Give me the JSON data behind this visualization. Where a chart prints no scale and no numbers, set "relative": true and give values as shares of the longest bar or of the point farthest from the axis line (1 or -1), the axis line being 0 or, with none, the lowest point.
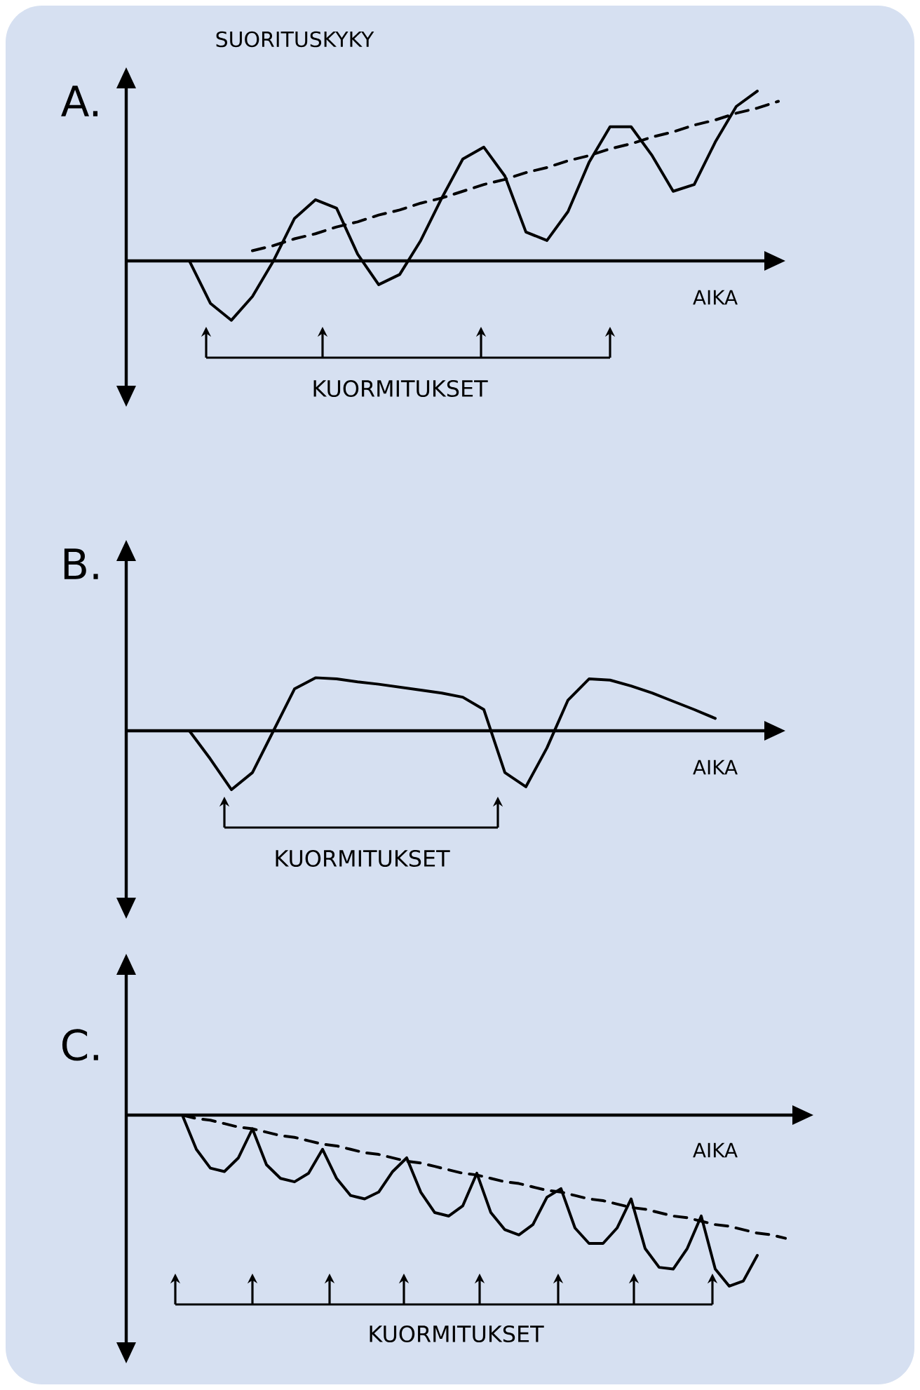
{
  "chart_data": [
    {
      "type": "line",
      "title": "A.",
      "ylabel": "SUORITUSKYKY",
      "xlabel": "AIKA",
      "relative": true,
      "annotations": [
        "KUORMITUKSET"
      ],
      "categories": [
        null,
        null,
        null,
        null,
        null,
        null,
        null,
        null,
        null,
        null,
        null,
        null,
        null,
        null,
        null,
        null,
        null,
        null,
        null,
        null,
        null,
        null,
        null,
        null,
        null,
        null,
        null,
        null,
        null,
        null,
        null,
        null
      ],
      "series": [
        {
          "color": "#000000",
          "values": [
            null,
            null,
            null,
            0,
            -0.25,
            -0.35,
            -0.21,
            0,
            0.25,
            0.36,
            0.31,
            0.04,
            -0.14,
            -0.08,
            0.12,
            0.37,
            0.6,
            0.67,
            0.5,
            0.17,
            0.12,
            0.29,
            0.58,
            0.79,
            0.79,
            0.62,
            0.41,
            0.45,
            0.7,
            0.91,
            1,
            null
          ]
        },
        {
          "color": "#000000",
          "line_style": "dashed",
          "values": [
            null,
            null,
            null,
            null,
            null,
            null,
            0.06,
            0.09,
            0.13,
            0.16,
            0.2,
            0.23,
            0.27,
            0.3,
            0.34,
            0.37,
            0.41,
            0.45,
            0.48,
            0.52,
            0.55,
            0.59,
            0.62,
            0.66,
            0.69,
            0.73,
            0.76,
            0.8,
            0.83,
            0.87,
            0.9,
            0.94
          ]
        }
      ]
    },
    {
      "type": "line",
      "title": "B.",
      "xlabel": "AIKA",
      "relative": true,
      "annotations": [
        "KUORMITUKSET"
      ],
      "categories": [
        null,
        null,
        null,
        null,
        null,
        null,
        null,
        null,
        null,
        null,
        null,
        null,
        null,
        null,
        null,
        null,
        null,
        null,
        null,
        null,
        null,
        null,
        null,
        null,
        null,
        null,
        null,
        null,
        null,
        null,
        null,
        null
      ],
      "series": [
        {
          "color": "#000000",
          "values": [
            null,
            null,
            null,
            0,
            -0.48,
            -1,
            -0.71,
            0,
            0.71,
            0.9,
            0.88,
            0.83,
            0.79,
            0.74,
            0.69,
            0.64,
            0.57,
            0.36,
            -0.71,
            -0.95,
            -0.29,
            0.52,
            0.88,
            0.86,
            0.76,
            0.64,
            0.5,
            0.36,
            0.21,
            null,
            null,
            null
          ]
        }
      ]
    },
    {
      "type": "line",
      "title": "C.",
      "xlabel": "AIKA",
      "relative": true,
      "annotations": [
        "KUORMITUKSET"
      ],
      "categories": [
        null,
        null,
        null,
        null,
        null,
        null,
        null,
        null,
        null,
        null,
        null,
        null,
        null,
        null,
        null,
        null,
        null,
        null,
        null,
        null,
        null,
        null,
        null,
        null,
        null,
        null,
        null,
        null,
        null,
        null,
        null,
        null,
        null,
        null,
        null,
        null,
        null,
        null,
        null,
        null,
        null,
        null,
        null,
        null,
        null,
        null,
        null,
        null
      ],
      "series": [
        {
          "color": "#000000",
          "values": [
            null,
            null,
            null,
            null,
            0,
            -0.2,
            -0.31,
            -0.33,
            -0.25,
            -0.08,
            -0.29,
            -0.37,
            -0.39,
            -0.34,
            -0.2,
            -0.37,
            -0.47,
            -0.49,
            -0.45,
            -0.33,
            -0.25,
            -0.45,
            -0.57,
            -0.59,
            -0.53,
            -0.34,
            -0.57,
            -0.67,
            -0.7,
            -0.64,
            -0.48,
            -0.43,
            -0.66,
            -0.75,
            -0.75,
            -0.66,
            -0.49,
            -0.78,
            -0.89,
            -0.9,
            -0.78,
            -0.59,
            -0.9,
            -1,
            -0.97,
            -0.82,
            null,
            null
          ]
        },
        {
          "color": "#000000",
          "line_style": "dashed",
          "values": [
            null,
            null,
            null,
            null,
            0,
            -0.02,
            -0.03,
            -0.05,
            -0.07,
            -0.08,
            -0.1,
            -0.12,
            -0.13,
            -0.15,
            -0.17,
            -0.18,
            -0.2,
            -0.22,
            -0.23,
            -0.25,
            -0.27,
            -0.28,
            -0.3,
            -0.32,
            -0.34,
            -0.35,
            -0.37,
            -0.39,
            -0.4,
            -0.42,
            -0.44,
            -0.45,
            -0.47,
            -0.49,
            -0.5,
            -0.52,
            -0.54,
            -0.55,
            -0.57,
            -0.59,
            -0.6,
            -0.62,
            -0.64,
            -0.65,
            -0.67,
            -0.69,
            -0.7,
            -0.72
          ]
        }
      ]
    }
  ]
}
